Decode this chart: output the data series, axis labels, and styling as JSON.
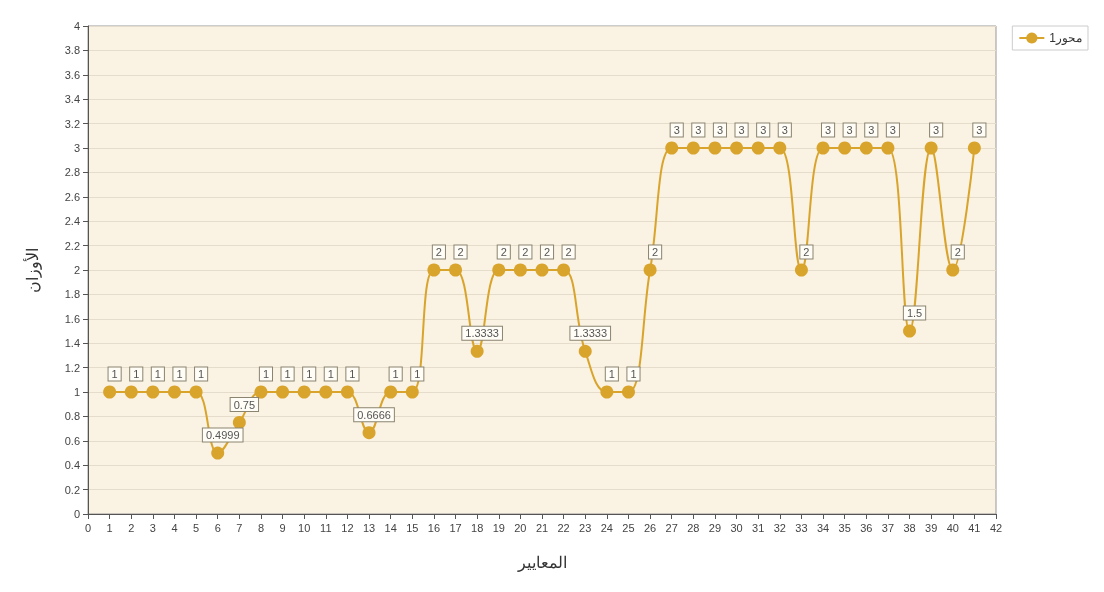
{
  "chart_data": {
    "type": "line",
    "xlabel": "المعايير",
    "ylabel": "الأوزان",
    "x": [
      1,
      2,
      3,
      4,
      5,
      6,
      7,
      8,
      9,
      10,
      11,
      12,
      13,
      14,
      15,
      16,
      17,
      18,
      19,
      20,
      21,
      22,
      23,
      24,
      25,
      26,
      27,
      28,
      29,
      30,
      31,
      32,
      33,
      34,
      35,
      36,
      37,
      38,
      39,
      40,
      41
    ],
    "series": [
      {
        "name": "محور1",
        "color": "#d9a42c",
        "values": [
          1,
          1,
          1,
          1,
          1,
          0.4999,
          0.75,
          1,
          1,
          1,
          1,
          1,
          0.6666,
          1,
          1,
          2,
          2,
          1.3333,
          2,
          2,
          2,
          2,
          1.3333,
          1,
          1,
          2,
          3,
          3,
          3,
          3,
          3,
          3,
          2,
          3,
          3,
          3,
          3,
          1.5,
          3,
          2,
          3
        ]
      }
    ],
    "xlim": [
      0,
      42
    ],
    "xticks": [
      0,
      1,
      2,
      3,
      4,
      5,
      6,
      7,
      8,
      9,
      10,
      11,
      12,
      13,
      14,
      15,
      16,
      17,
      18,
      19,
      20,
      21,
      22,
      23,
      24,
      25,
      26,
      27,
      28,
      29,
      30,
      31,
      32,
      33,
      34,
      35,
      36,
      37,
      38,
      39,
      40,
      41,
      42
    ],
    "ylim": [
      0,
      4
    ],
    "yticks": [
      0,
      0.2,
      0.4,
      0.6,
      0.8,
      1,
      1.2,
      1.4,
      1.6,
      1.8,
      2,
      2.2,
      2.4,
      2.6,
      2.8,
      3,
      3.2,
      3.4,
      3.6,
      3.8,
      4
    ],
    "grid": "y",
    "legend": "top right",
    "marker": "circle",
    "line_style": "solid",
    "data_labels": true
  }
}
